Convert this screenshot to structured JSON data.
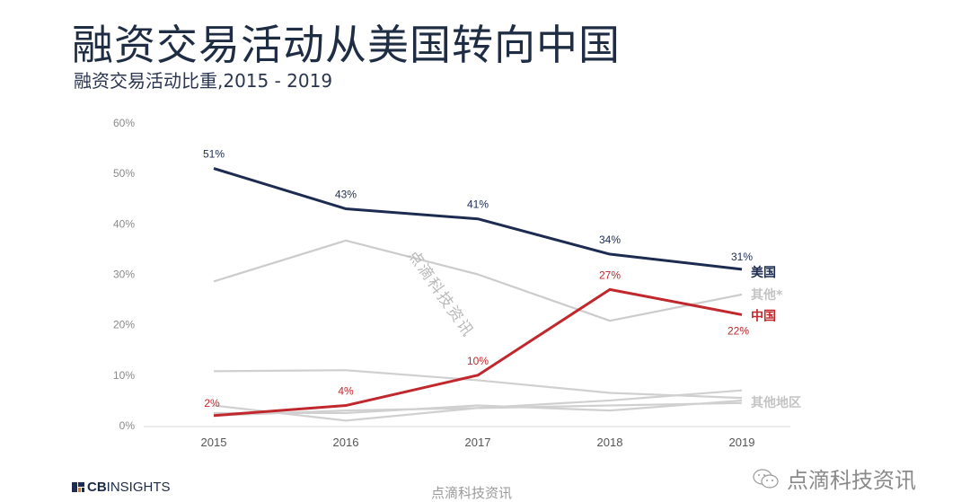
{
  "title": "融资交易活动从美国转向中国",
  "subtitle": "融资交易活动比重,2015 - 2019",
  "chart_data": {
    "type": "line",
    "title": "融资交易活动从美国转向中国",
    "subtitle": "融资交易活动比重,2015 - 2019",
    "x": [
      "2015",
      "2016",
      "2017",
      "2018",
      "2019"
    ],
    "ylim": [
      0,
      60
    ],
    "yticks": [
      "0%",
      "10%",
      "20%",
      "30%",
      "40%",
      "50%",
      "60%"
    ],
    "ytick_values": [
      0,
      10,
      20,
      30,
      40,
      50,
      60
    ],
    "xlabel": "",
    "ylabel": "",
    "grid": false,
    "series": [
      {
        "name": "美国",
        "color": "#1c2b4f",
        "values": [
          51,
          43,
          41,
          34,
          31
        ],
        "labels": [
          "51%",
          "43%",
          "41%",
          "34%",
          "31%"
        ],
        "highlight": true
      },
      {
        "name": "中国",
        "color": "#c0282d",
        "values": [
          2,
          4,
          10,
          27,
          22
        ],
        "labels": [
          "2%",
          "4%",
          "10%",
          "27%",
          "22%"
        ],
        "highlight": true
      },
      {
        "name": "其他*",
        "color": "#cccccc",
        "values": [
          28.6,
          36.7,
          30,
          20.8,
          26
        ],
        "labels": []
      },
      {
        "name": "其他地区",
        "color": "#d0d0d0",
        "values": [
          10.8,
          11,
          9,
          6.5,
          5.5
        ],
        "labels": []
      },
      {
        "name": "其他地区",
        "color": "#d0d0d0",
        "values": [
          4,
          1,
          3.5,
          5,
          7
        ],
        "labels": []
      },
      {
        "name": "其他地区",
        "color": "#d0d0d0",
        "values": [
          2.5,
          2.5,
          4,
          3,
          5
        ],
        "labels": []
      },
      {
        "name": "其他地区",
        "color": "#d0d0d0",
        "values": [
          2,
          3,
          3.5,
          4,
          4.5
        ],
        "labels": []
      }
    ],
    "end_labels": [
      {
        "text": "美国",
        "color": "#1c2b4f"
      },
      {
        "text": "其他*",
        "color": "#c4c4c4"
      },
      {
        "text": "中国",
        "color": "#c0282d"
      },
      {
        "text": "其他地区",
        "color": "#c4c4c4"
      }
    ]
  },
  "watermark": "点滴科技资讯",
  "footer": {
    "logo_bold": "CB",
    "logo_rest": "INSIGHTS",
    "center_watermark": "点滴科技资讯",
    "wechat_name": "点滴科技资讯"
  }
}
